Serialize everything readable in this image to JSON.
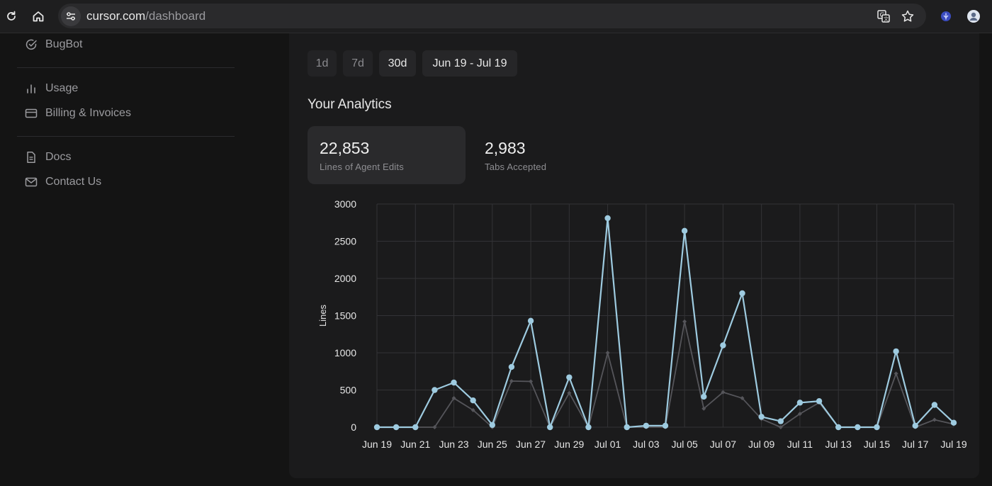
{
  "browser": {
    "url_host": "cursor.com",
    "url_path": "/dashboard"
  },
  "sidebar": {
    "items": [
      {
        "label": "BugBot",
        "icon": "check-circle-icon"
      },
      {
        "label": "Usage",
        "icon": "bar-chart-icon"
      },
      {
        "label": "Billing & Invoices",
        "icon": "credit-card-icon"
      },
      {
        "label": "Docs",
        "icon": "document-icon"
      },
      {
        "label": "Contact Us",
        "icon": "mail-icon"
      }
    ]
  },
  "range": {
    "options": [
      "1d",
      "7d",
      "30d"
    ],
    "selected": "30d",
    "date_range": "Jun 19 - Jul 19"
  },
  "analytics": {
    "title": "Your Analytics",
    "cards": [
      {
        "value": "22,853",
        "label": "Lines of Agent Edits",
        "selected": true
      },
      {
        "value": "2,983",
        "label": "Tabs Accepted",
        "selected": false
      }
    ]
  },
  "colors": {
    "primary_line": "#9ecbe0",
    "secondary_line": "#55555a",
    "grid": "#333336"
  },
  "chart_data": {
    "type": "line",
    "ylabel": "Lines",
    "ylim": [
      0,
      3000
    ],
    "yticks": [
      0,
      500,
      1000,
      1500,
      2000,
      2500,
      3000
    ],
    "x_tick_labels": [
      "Jun 19",
      "Jun 21",
      "Jun 23",
      "Jun 25",
      "Jun 27",
      "Jun 29",
      "Jul 01",
      "Jul 03",
      "Jul 05",
      "Jul 07",
      "Jul 09",
      "Jul 11",
      "Jul 13",
      "Jul 15",
      "Jul 17",
      "Jul 19"
    ],
    "x": [
      "Jun 19",
      "Jun 20",
      "Jun 21",
      "Jun 22",
      "Jun 23",
      "Jun 24",
      "Jun 25",
      "Jun 26",
      "Jun 27",
      "Jun 28",
      "Jun 29",
      "Jun 30",
      "Jul 01",
      "Jul 02",
      "Jul 03",
      "Jul 04",
      "Jul 05",
      "Jul 06",
      "Jul 07",
      "Jul 08",
      "Jul 09",
      "Jul 10",
      "Jul 11",
      "Jul 12",
      "Jul 13",
      "Jul 14",
      "Jul 15",
      "Jul 16",
      "Jul 17",
      "Jul 18",
      "Jul 19"
    ],
    "series": [
      {
        "values": [
          0,
          0,
          0,
          500,
          600,
          360,
          30,
          810,
          1430,
          0,
          670,
          0,
          2810,
          0,
          20,
          20,
          2640,
          410,
          1100,
          1800,
          140,
          80,
          330,
          350,
          0,
          0,
          0,
          1020,
          20,
          300,
          60
        ]
      },
      {
        "values": [
          0,
          0,
          0,
          0,
          390,
          230,
          0,
          620,
          615,
          0,
          460,
          0,
          1000,
          0,
          0,
          0,
          1420,
          250,
          470,
          390,
          110,
          0,
          180,
          330,
          0,
          0,
          0,
          720,
          0,
          100,
          40
        ]
      }
    ],
    "grid": true,
    "legend": "none"
  }
}
